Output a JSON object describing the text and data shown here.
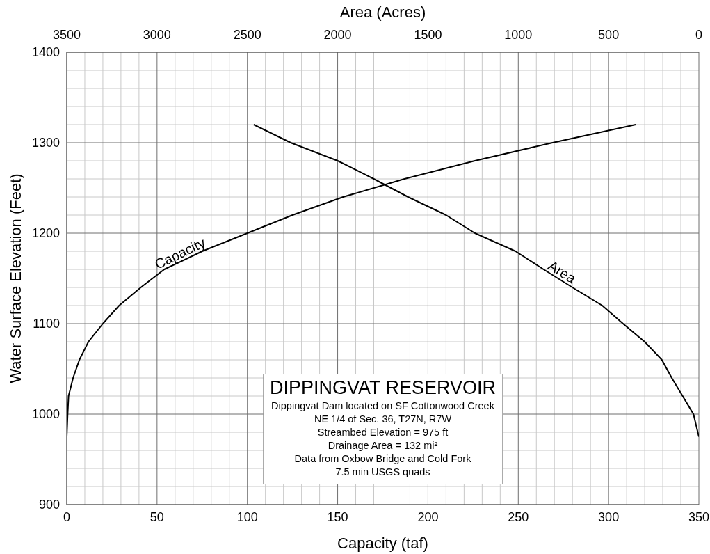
{
  "chart_data": {
    "type": "line",
    "title": "DIPPINGVAT RESERVOIR",
    "annotations": [
      "Dippingvat Dam located on SF Cottonwood Creek",
      "NE 1/4 of Sec. 36, T27N, R7W",
      "Streambed Elevation = 975 ft",
      "Drainage Area = 132 mi²",
      "Data from Oxbow Bridge and Cold Fork",
      "7.5 min USGS quads"
    ],
    "xlabel": "Capacity (taf)",
    "x2label": "Area (Acres)",
    "ylabel": "Water Surface Elevation (Feet)",
    "xlim": [
      0,
      350
    ],
    "xticks": [
      0,
      {
        "value": 10,
        "label": null
      },
      {
        "value": 20,
        "label": null
      },
      {
        "value": 30,
        "label": null
      },
      {
        "value": 40,
        "label": null
      },
      50,
      {
        "value": 60,
        "label": null
      },
      {
        "value": 70,
        "label": null
      },
      {
        "value": 80,
        "label": null
      },
      {
        "value": 90,
        "label": null
      },
      100,
      {
        "value": 110,
        "label": null
      },
      {
        "value": 120,
        "label": null
      },
      {
        "value": 130,
        "label": null
      },
      {
        "value": 140,
        "label": null
      },
      150,
      {
        "value": 160,
        "label": null
      },
      {
        "value": 170,
        "label": null
      },
      {
        "value": 180,
        "label": null
      },
      {
        "value": 190,
        "label": null
      },
      200,
      {
        "value": 210,
        "label": null
      },
      {
        "value": 220,
        "label": null
      },
      {
        "value": 230,
        "label": null
      },
      {
        "value": 240,
        "label": null
      },
      250,
      {
        "value": 260,
        "label": null
      },
      {
        "value": 270,
        "label": null
      },
      {
        "value": 280,
        "label": null
      },
      {
        "value": 290,
        "label": null
      },
      300,
      {
        "value": 310,
        "label": null
      },
      {
        "value": 320,
        "label": null
      },
      {
        "value": 330,
        "label": null
      },
      {
        "value": 340,
        "label": null
      },
      350
    ],
    "x2lim": [
      3500,
      0
    ],
    "x2ticks": [
      3500,
      3000,
      2500,
      2000,
      1500,
      1000,
      500,
      0
    ],
    "ylim": [
      900,
      1400
    ],
    "yticks": [
      900,
      {
        "value": 920,
        "label": null
      },
      {
        "value": 940,
        "label": null
      },
      {
        "value": 960,
        "label": null
      },
      {
        "value": 980,
        "label": null
      },
      1000,
      {
        "value": 1020,
        "label": null
      },
      {
        "value": 1040,
        "label": null
      },
      {
        "value": 1060,
        "label": null
      },
      {
        "value": 1080,
        "label": null
      },
      1100,
      {
        "value": 1120,
        "label": null
      },
      {
        "value": 1140,
        "label": null
      },
      {
        "value": 1160,
        "label": null
      },
      {
        "value": 1180,
        "label": null
      },
      1200,
      {
        "value": 1220,
        "label": null
      },
      {
        "value": 1240,
        "label": null
      },
      {
        "value": 1260,
        "label": null
      },
      {
        "value": 1280,
        "label": null
      },
      1300,
      {
        "value": 1320,
        "label": null
      },
      {
        "value": 1340,
        "label": null
      },
      {
        "value": 1360,
        "label": null
      },
      {
        "value": 1380,
        "label": null
      },
      1400
    ],
    "grid": true,
    "line_style": "solid",
    "series": [
      {
        "name": "Capacity",
        "color": "#000000",
        "x": [
          0,
          0.5,
          1,
          3.5,
          7,
          12,
          20,
          29,
          41,
          54,
          75,
          100,
          125,
          153,
          187,
          226,
          269,
          315
        ],
        "values": [
          975,
          1000,
          1020,
          1040,
          1060,
          1080,
          1100,
          1120,
          1140,
          1160,
          1180,
          1200,
          1220,
          1240,
          1260,
          1280,
          1300,
          1320
        ]
      },
      {
        "name": "Area",
        "color": "#000000",
        "axis": "x2",
        "x": [
          2465,
          2260,
          2000,
          1800,
          1610,
          1400,
          1240,
          1015,
          860,
          700,
          535,
          420,
          300,
          205,
          150,
          90,
          30,
          0
        ],
        "values": [
          1320,
          1300,
          1280,
          1260,
          1240,
          1220,
          1200,
          1180,
          1160,
          1140,
          1120,
          1100,
          1080,
          1060,
          1040,
          1020,
          1000,
          975
        ]
      }
    ]
  }
}
